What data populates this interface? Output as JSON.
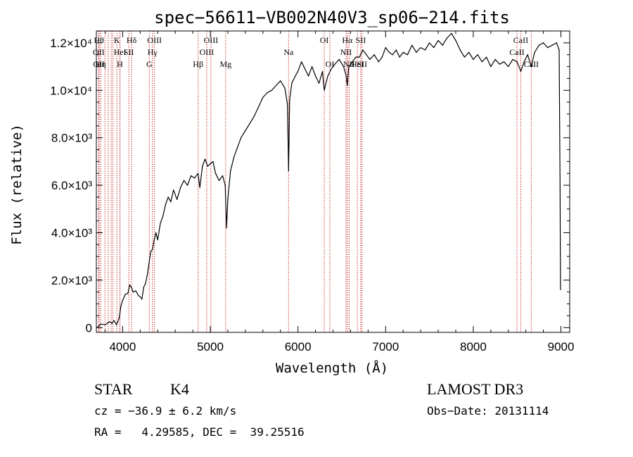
{
  "chart_data": {
    "type": "line",
    "title": "spec−56611−VB002N40V3_sp06−214.fits",
    "xlabel": "Wavelength (Å)",
    "ylabel": "Flux (relative)",
    "xlim": [
      3700,
      9100
    ],
    "ylim": [
      -200,
      12500
    ],
    "x_ticks": [
      {
        "value": 4000,
        "label": "4000"
      },
      {
        "value": 5000,
        "label": "5000"
      },
      {
        "value": 6000,
        "label": "6000"
      },
      {
        "value": 7000,
        "label": "7000"
      },
      {
        "value": 8000,
        "label": "8000"
      },
      {
        "value": 9000,
        "label": "9000"
      }
    ],
    "y_ticks": [
      {
        "value": 0,
        "label": "0"
      },
      {
        "value": 2000,
        "label": "2.0×10³"
      },
      {
        "value": 4000,
        "label": "4.0×10³"
      },
      {
        "value": 6000,
        "label": "6.0×10³"
      },
      {
        "value": 8000,
        "label": "8.0×10³"
      },
      {
        "value": 10000,
        "label": "1.0×10⁴"
      },
      {
        "value": 12000,
        "label": "1.2×10⁴"
      }
    ],
    "series": [
      {
        "name": "spectrum",
        "points": [
          [
            3710,
            0
          ],
          [
            3750,
            150
          ],
          [
            3800,
            120
          ],
          [
            3850,
            250
          ],
          [
            3880,
            180
          ],
          [
            3900,
            300
          ],
          [
            3930,
            120
          ],
          [
            3960,
            400
          ],
          [
            3980,
            900
          ],
          [
            4000,
            1150
          ],
          [
            4030,
            1400
          ],
          [
            4060,
            1450
          ],
          [
            4080,
            1800
          ],
          [
            4100,
            1700
          ],
          [
            4120,
            1500
          ],
          [
            4150,
            1550
          ],
          [
            4180,
            1350
          ],
          [
            4200,
            1300
          ],
          [
            4220,
            1200
          ],
          [
            4240,
            1700
          ],
          [
            4260,
            1850
          ],
          [
            4280,
            2200
          ],
          [
            4300,
            2700
          ],
          [
            4320,
            3200
          ],
          [
            4340,
            3300
          ],
          [
            4360,
            3700
          ],
          [
            4380,
            4000
          ],
          [
            4400,
            3700
          ],
          [
            4430,
            4400
          ],
          [
            4460,
            4700
          ],
          [
            4490,
            5200
          ],
          [
            4520,
            5500
          ],
          [
            4550,
            5300
          ],
          [
            4580,
            5800
          ],
          [
            4620,
            5400
          ],
          [
            4660,
            5900
          ],
          [
            4700,
            6200
          ],
          [
            4740,
            6000
          ],
          [
            4780,
            6400
          ],
          [
            4820,
            6300
          ],
          [
            4860,
            6500
          ],
          [
            4880,
            5900
          ],
          [
            4910,
            6800
          ],
          [
            4940,
            7100
          ],
          [
            4970,
            6800
          ],
          [
            5000,
            6900
          ],
          [
            5030,
            7000
          ],
          [
            5060,
            6500
          ],
          [
            5100,
            6200
          ],
          [
            5140,
            6400
          ],
          [
            5170,
            6000
          ],
          [
            5185,
            4200
          ],
          [
            5200,
            5400
          ],
          [
            5230,
            6600
          ],
          [
            5270,
            7200
          ],
          [
            5310,
            7600
          ],
          [
            5350,
            8000
          ],
          [
            5400,
            8300
          ],
          [
            5450,
            8600
          ],
          [
            5500,
            8900
          ],
          [
            5550,
            9300
          ],
          [
            5600,
            9700
          ],
          [
            5650,
            9900
          ],
          [
            5700,
            10000
          ],
          [
            5750,
            10200
          ],
          [
            5800,
            10400
          ],
          [
            5850,
            10100
          ],
          [
            5880,
            9400
          ],
          [
            5893,
            6600
          ],
          [
            5905,
            9600
          ],
          [
            5930,
            10300
          ],
          [
            5970,
            10600
          ],
          [
            6000,
            10800
          ],
          [
            6040,
            11200
          ],
          [
            6080,
            10900
          ],
          [
            6120,
            10600
          ],
          [
            6160,
            11000
          ],
          [
            6200,
            10600
          ],
          [
            6240,
            10300
          ],
          [
            6280,
            10800
          ],
          [
            6300,
            10000
          ],
          [
            6340,
            10600
          ],
          [
            6380,
            10900
          ],
          [
            6420,
            11100
          ],
          [
            6470,
            11300
          ],
          [
            6520,
            11000
          ],
          [
            6550,
            10600
          ],
          [
            6563,
            10200
          ],
          [
            6580,
            11000
          ],
          [
            6620,
            11200
          ],
          [
            6660,
            11400
          ],
          [
            6700,
            11400
          ],
          [
            6740,
            11700
          ],
          [
            6780,
            11500
          ],
          [
            6820,
            11300
          ],
          [
            6870,
            11500
          ],
          [
            6920,
            11200
          ],
          [
            6960,
            11400
          ],
          [
            7000,
            11800
          ],
          [
            7040,
            11600
          ],
          [
            7080,
            11500
          ],
          [
            7120,
            11700
          ],
          [
            7160,
            11400
          ],
          [
            7200,
            11600
          ],
          [
            7250,
            11500
          ],
          [
            7300,
            11900
          ],
          [
            7350,
            11600
          ],
          [
            7400,
            11800
          ],
          [
            7450,
            11700
          ],
          [
            7500,
            12000
          ],
          [
            7550,
            11800
          ],
          [
            7600,
            12100
          ],
          [
            7650,
            11900
          ],
          [
            7700,
            12200
          ],
          [
            7750,
            12400
          ],
          [
            7800,
            12100
          ],
          [
            7850,
            11700
          ],
          [
            7900,
            11400
          ],
          [
            7950,
            11600
          ],
          [
            8000,
            11300
          ],
          [
            8050,
            11500
          ],
          [
            8100,
            11200
          ],
          [
            8150,
            11400
          ],
          [
            8200,
            11000
          ],
          [
            8250,
            11300
          ],
          [
            8300,
            11100
          ],
          [
            8350,
            11200
          ],
          [
            8400,
            11000
          ],
          [
            8450,
            11300
          ],
          [
            8500,
            11200
          ],
          [
            8542,
            10800
          ],
          [
            8580,
            11200
          ],
          [
            8620,
            11500
          ],
          [
            8662,
            11000
          ],
          [
            8700,
            11600
          ],
          [
            8750,
            11900
          ],
          [
            8800,
            12000
          ],
          [
            8850,
            11800
          ],
          [
            8900,
            11900
          ],
          [
            8950,
            12000
          ],
          [
            8980,
            11700
          ],
          [
            8990,
            6000
          ],
          [
            8995,
            1600
          ]
        ]
      }
    ],
    "lines": [
      {
        "x": 3730,
        "label": "Hθ",
        "row": 1
      },
      {
        "x": 3727,
        "label": "OII",
        "row": 2
      },
      {
        "x": 3730,
        "label": "OII",
        "row": 3
      },
      {
        "x": 3750,
        "label": "Hη",
        "row": 3
      },
      {
        "x": 3798,
        "label": "",
        "row": 0
      },
      {
        "x": 3835,
        "label": "",
        "row": 0
      },
      {
        "x": 3870,
        "label": "",
        "row": 0
      },
      {
        "x": 3889,
        "label": "",
        "row": 0
      },
      {
        "x": 3934,
        "label": "K",
        "row": 1
      },
      {
        "x": 3968,
        "label": "H",
        "row": 3
      },
      {
        "x": 3970,
        "label": "HeI",
        "row": 2
      },
      {
        "x": 4070,
        "label": "SII",
        "row": 2
      },
      {
        "x": 4102,
        "label": "Hδ",
        "row": 1
      },
      {
        "x": 4304,
        "label": "G",
        "row": 3
      },
      {
        "x": 4340,
        "label": "Hγ",
        "row": 2
      },
      {
        "x": 4363,
        "label": "OIII",
        "row": 1
      },
      {
        "x": 4861,
        "label": "Hβ",
        "row": 3
      },
      {
        "x": 4959,
        "label": "OIII",
        "row": 2
      },
      {
        "x": 5007,
        "label": "OIII",
        "row": 1
      },
      {
        "x": 5175,
        "label": "Mg",
        "row": 3
      },
      {
        "x": 5893,
        "label": "Na",
        "row": 2
      },
      {
        "x": 6300,
        "label": "OI",
        "row": 1
      },
      {
        "x": 6364,
        "label": "OI",
        "row": 3
      },
      {
        "x": 6548,
        "label": "NII",
        "row": 2
      },
      {
        "x": 6563,
        "label": "Hα",
        "row": 1
      },
      {
        "x": 6583,
        "label": "NII",
        "row": 3
      },
      {
        "x": 6678,
        "label": "HeI",
        "row": 3
      },
      {
        "x": 6716,
        "label": "SII",
        "row": 1
      },
      {
        "x": 6731,
        "label": "SII",
        "row": 3
      },
      {
        "x": 8498,
        "label": "CaII",
        "row": 2
      },
      {
        "x": 8542,
        "label": "CaII",
        "row": 1
      },
      {
        "x": 8662,
        "label": "CaII",
        "row": 3
      }
    ]
  },
  "info": {
    "class": "STAR",
    "subclass": "K4",
    "survey": "LAMOST DR3",
    "cz": "cz = −36.9 ± 6.2 km/s",
    "obs_date": "Obs−Date: 20131114",
    "radec": "RA =   4.29585, DEC =  39.25516"
  }
}
